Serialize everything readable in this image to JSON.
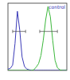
{
  "chart_data": {
    "type": "line",
    "x": [
      0,
      4,
      8,
      12,
      16,
      20,
      24,
      28,
      32,
      36,
      40,
      44,
      48,
      52,
      56,
      60,
      64,
      68,
      72,
      76,
      80,
      84,
      88,
      92,
      96,
      100
    ],
    "series": [
      {
        "name": "control",
        "color": "#3a3ab8",
        "values": [
          2,
          3,
          8,
          40,
          88,
          60,
          20,
          6,
          2,
          1,
          0,
          0,
          0,
          0,
          0,
          0,
          0,
          0,
          0,
          0,
          0,
          0,
          0,
          0,
          0,
          0
        ]
      },
      {
        "color": "#3cb83c",
        "values": [
          0,
          0,
          0,
          0,
          0,
          0,
          0,
          0,
          0,
          0,
          0,
          1,
          5,
          10,
          22,
          45,
          75,
          95,
          80,
          45,
          15,
          4,
          1,
          0,
          0,
          0
        ]
      }
    ],
    "gates": [
      {
        "x": [
          8,
          30
        ],
        "y": 58
      },
      {
        "x": [
          54,
          84
        ],
        "y": 58
      }
    ],
    "xlim": [
      0,
      100
    ],
    "ylim": [
      0,
      100
    ],
    "tick_labels": false,
    "grid": false
  }
}
